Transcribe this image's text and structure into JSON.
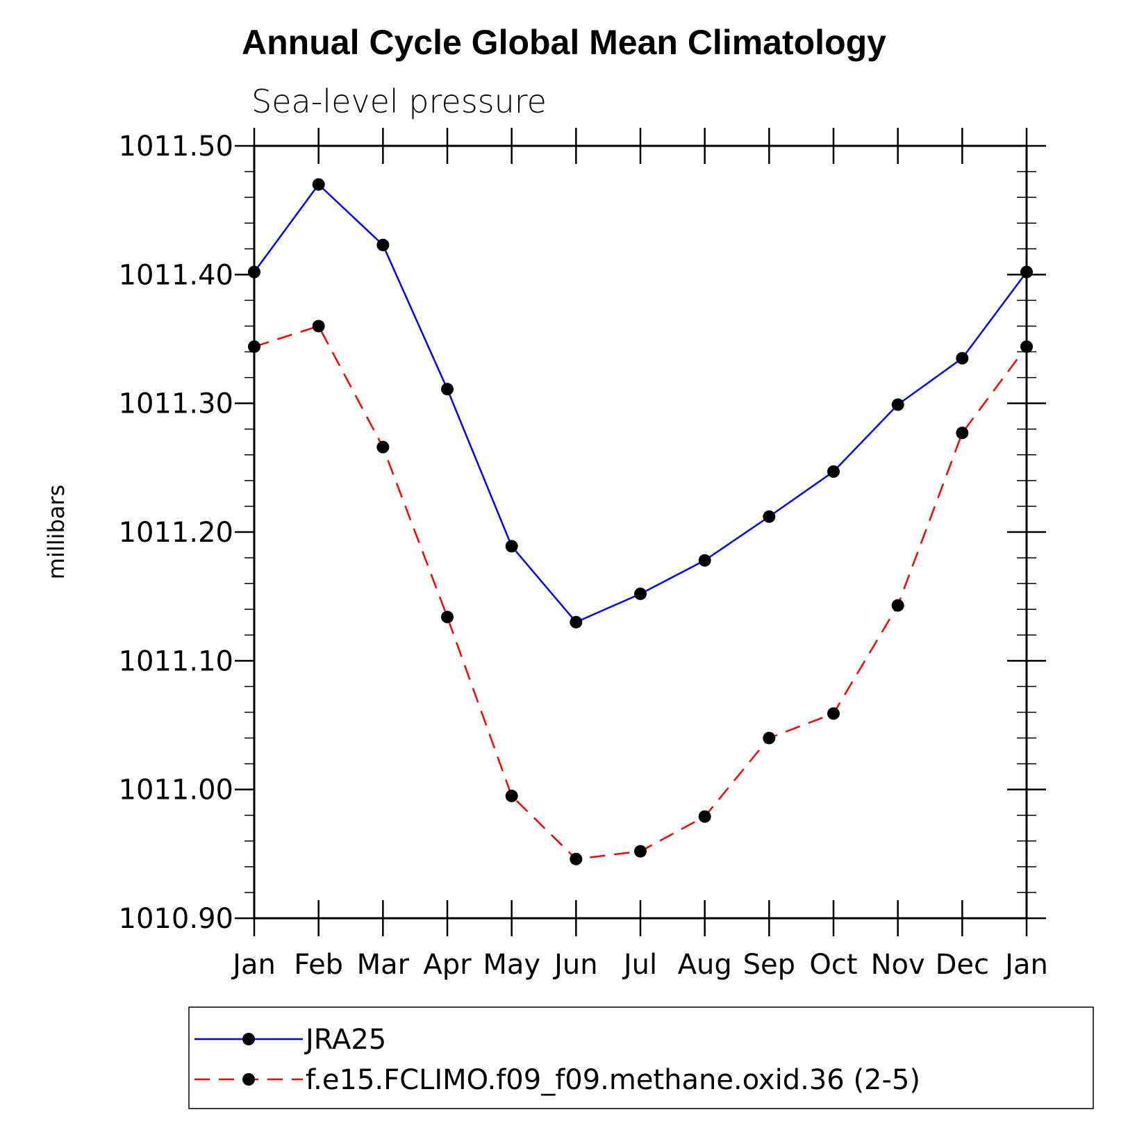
{
  "chart_data": {
    "type": "line",
    "title": "Annual Cycle Global Mean Climatology",
    "subtitle": "Sea-level pressure",
    "xlabel": "",
    "ylabel": "millibars",
    "categories": [
      "Jan",
      "Feb",
      "Mar",
      "Apr",
      "May",
      "Jun",
      "Jul",
      "Aug",
      "Sep",
      "Oct",
      "Nov",
      "Dec",
      "Jan"
    ],
    "ylim": [
      1010.9,
      1011.5
    ],
    "yticks": [
      "1010.90",
      "1011.00",
      "1011.10",
      "1011.20",
      "1011.30",
      "1011.40",
      "1011.50"
    ],
    "ytick_values": [
      1010.9,
      1011.0,
      1011.1,
      1011.2,
      1011.3,
      1011.4,
      1011.5
    ],
    "minor_ticks_per_major": 5,
    "grid": false,
    "legend_position": "bottom",
    "series": [
      {
        "name": "JRA25",
        "color": "#0000ff",
        "line_style": "solid",
        "marker": "filled-circle",
        "values": [
          1011.402,
          1011.47,
          1011.423,
          1011.311,
          1011.189,
          1011.13,
          1011.152,
          1011.178,
          1011.212,
          1011.247,
          1011.299,
          1011.335,
          1011.402
        ]
      },
      {
        "name": "f.e15.FCLIMO.f09_f09.methane.oxid.36 (2-5)",
        "color": "#ff0000",
        "line_style": "dashed",
        "marker": "filled-circle",
        "values": [
          1011.344,
          1011.36,
          1011.266,
          1011.134,
          1010.995,
          1010.946,
          1010.952,
          1010.979,
          1011.04,
          1011.059,
          1011.143,
          1011.277,
          1011.344
        ]
      }
    ]
  }
}
